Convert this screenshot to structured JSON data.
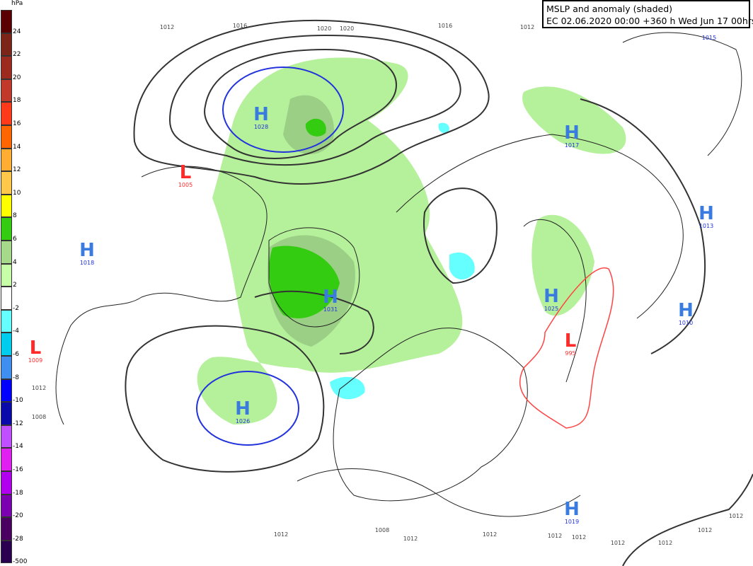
{
  "title": {
    "line1": "MSLP and anomaly (shaded)",
    "line2": "EC 02.06.2020 00:00 +360 h Wed Jun 17 00hrs"
  },
  "legend": {
    "unit": "hPa",
    "entries": [
      {
        "label": "24",
        "color": "#5a0000"
      },
      {
        "label": "22",
        "color": "#7d2418"
      },
      {
        "label": "20",
        "color": "#9c2a1e"
      },
      {
        "label": "18",
        "color": "#c0392b"
      },
      {
        "label": "16",
        "color": "#ff3a1a"
      },
      {
        "label": "14",
        "color": "#ff6600"
      },
      {
        "label": "12",
        "color": "#ffae33"
      },
      {
        "label": "10",
        "color": "#ffc84a"
      },
      {
        "label": "8",
        "color": "#ffff00"
      },
      {
        "label": "6",
        "color": "#33cc11"
      },
      {
        "label": "4",
        "color": "#a6d98a"
      },
      {
        "label": "2",
        "color": "#c6ffa8"
      },
      {
        "label": "-2",
        "color": "#ffffff"
      },
      {
        "label": "-4",
        "color": "#66ffff"
      },
      {
        "label": "-6",
        "color": "#00ccee"
      },
      {
        "label": "-8",
        "color": "#3f8ff0"
      },
      {
        "label": "-10",
        "color": "#0000ff"
      },
      {
        "label": "-12",
        "color": "#0a0aaa"
      },
      {
        "label": "-14",
        "color": "#c050ff"
      },
      {
        "label": "-16",
        "color": "#e020f0"
      },
      {
        "label": "-18",
        "color": "#b000ee"
      },
      {
        "label": "-20",
        "color": "#7a00b0"
      },
      {
        "label": "-28",
        "color": "#4a0060"
      },
      {
        "label": "-500",
        "color": "#2a0050"
      }
    ]
  },
  "colors": {
    "high": "#3a7be0",
    "low": "#ff2a2a",
    "isobar": "#333333",
    "anomaly_pos_light": "#b5f09a",
    "anomaly_pos_mid": "#9ccf86",
    "anomaly_pos_strong": "#33cc11",
    "anomaly_neg": "#66ffff"
  },
  "systems": [
    {
      "type": "H",
      "value": "1028"
    },
    {
      "type": "L",
      "value": "1005"
    },
    {
      "type": "H",
      "value": "1018"
    },
    {
      "type": "H",
      "value": "1031"
    },
    {
      "type": "L",
      "value": "1009"
    },
    {
      "type": "H",
      "value": "1026"
    },
    {
      "type": "H",
      "value": "1017"
    },
    {
      "type": "H",
      "value": "1013"
    },
    {
      "type": "H",
      "value": "1025"
    },
    {
      "type": "L",
      "value": "995"
    },
    {
      "type": "H",
      "value": "1010"
    },
    {
      "type": "H",
      "value": "1019"
    },
    {
      "type": "H",
      "value": "1015"
    }
  ],
  "isobar_labels": [
    "1012",
    "1016",
    "1020",
    "1020",
    "1016",
    "1012",
    "1012",
    "1008",
    "1008",
    "1012",
    "1012",
    "1012",
    "1012",
    "1012",
    "1012",
    "1012",
    "1012",
    "1012"
  ]
}
